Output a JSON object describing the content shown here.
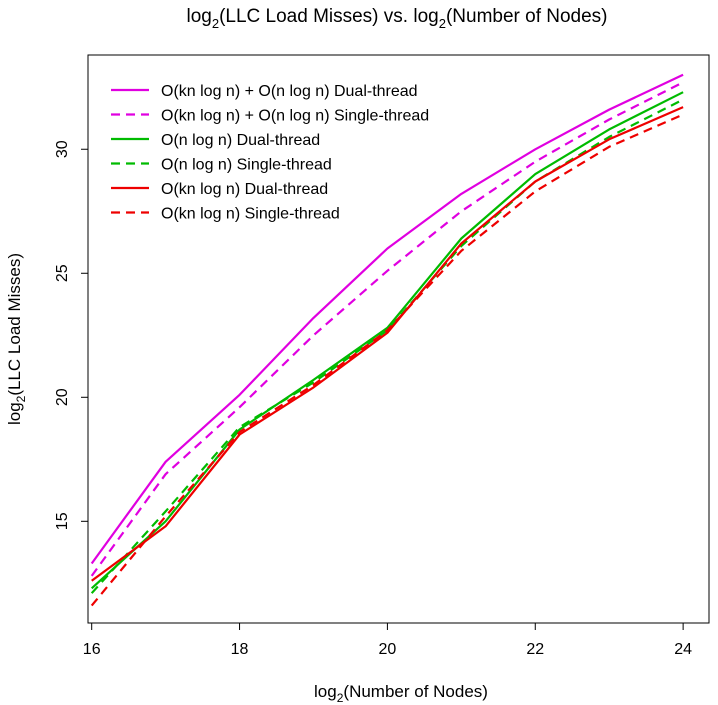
{
  "chart_data": {
    "type": "line",
    "title": {
      "prefix": "log",
      "sub": "2",
      "suffix": "(LLC Load Misses) vs. log",
      "sub2": "2",
      "suffix2": "(Number of Nodes)"
    },
    "xlabel": {
      "prefix": "log",
      "sub": "2",
      "suffix": "(Number of Nodes)"
    },
    "ylabel": {
      "prefix": "log",
      "sub": "2",
      "suffix": "(LLC Load Misses)"
    },
    "x": [
      16,
      17,
      18,
      19,
      20,
      21,
      22,
      23,
      24
    ],
    "xlim": [
      15.95,
      24.35
    ],
    "ylim": [
      10.9,
      33.8
    ],
    "xticks": [
      16,
      18,
      20,
      22,
      24
    ],
    "yticks": [
      15,
      20,
      25,
      30
    ],
    "xtick_labels": [
      "16",
      "18",
      "20",
      "22",
      "24"
    ],
    "ytick_labels": [
      "15",
      "20",
      "25",
      "30"
    ],
    "legend_position": "top-left",
    "series": [
      {
        "name": "O(kn log n) + O(n log n) Dual-thread",
        "color": "#e000e0",
        "dash": "solid",
        "values": [
          13.3,
          17.4,
          20.1,
          23.2,
          26.0,
          28.2,
          30.0,
          31.6,
          33.0
        ]
      },
      {
        "name": "O(kn log n) + O(n log n) Single-thread",
        "color": "#e000e0",
        "dash": "dashed",
        "values": [
          12.8,
          16.9,
          19.6,
          22.5,
          25.1,
          27.5,
          29.5,
          31.2,
          32.7
        ]
      },
      {
        "name": "O(n log n) Dual-thread",
        "color": "#00bb00",
        "dash": "solid",
        "values": [
          12.3,
          15.0,
          18.7,
          20.7,
          22.8,
          26.4,
          29.0,
          30.8,
          32.3
        ]
      },
      {
        "name": "O(n log n) Single-thread",
        "color": "#00bb00",
        "dash": "dashed",
        "values": [
          12.1,
          15.4,
          18.8,
          20.6,
          22.7,
          26.1,
          28.7,
          30.5,
          32.0
        ]
      },
      {
        "name": "O(kn log n) Dual-thread",
        "color": "#ee0000",
        "dash": "solid",
        "values": [
          12.6,
          14.8,
          18.5,
          20.4,
          22.6,
          26.2,
          28.7,
          30.4,
          31.7
        ]
      },
      {
        "name": "O(kn log n) Single-thread",
        "color": "#ee0000",
        "dash": "dashed",
        "values": [
          11.6,
          15.2,
          18.6,
          20.5,
          22.7,
          25.9,
          28.3,
          30.1,
          31.4
        ]
      }
    ]
  }
}
